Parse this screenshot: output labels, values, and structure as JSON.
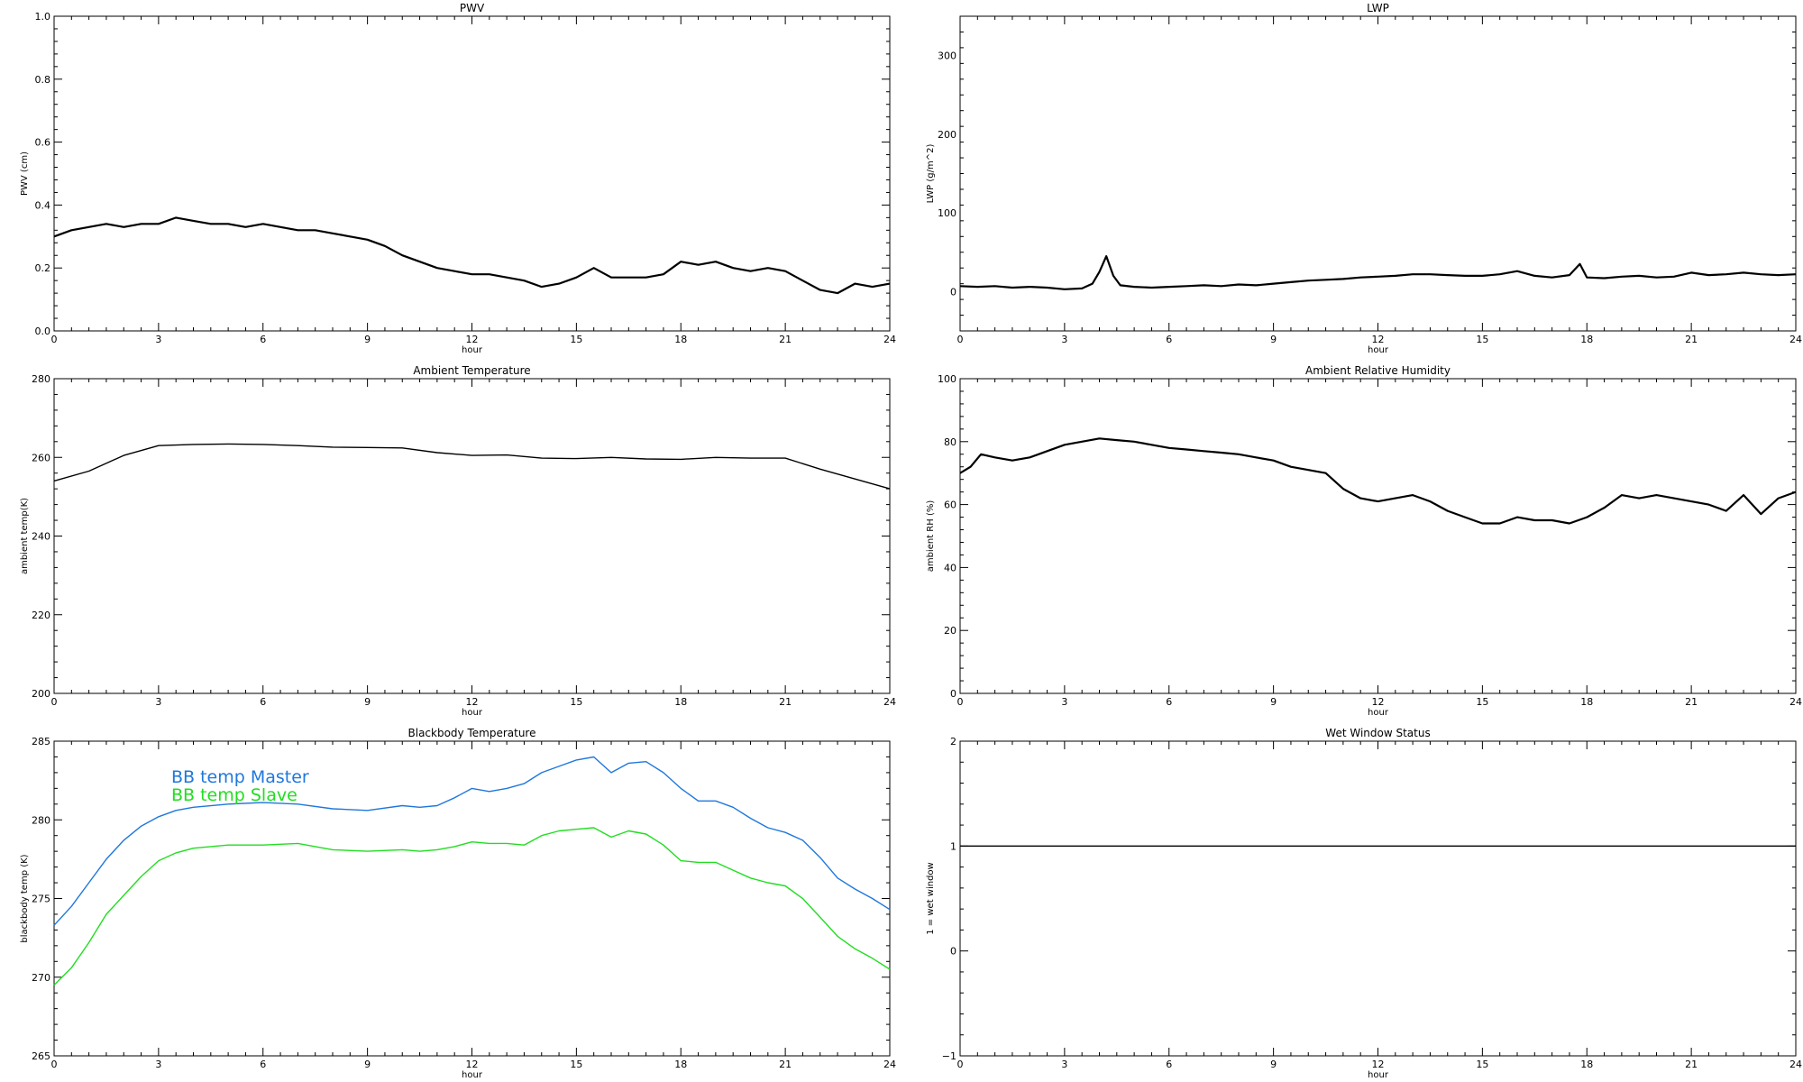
{
  "chart_data": [
    {
      "id": "pwv",
      "type": "line",
      "title": "PWV",
      "xlabel": "hour",
      "ylabel": "PWV (cm)",
      "xlim": [
        0,
        24
      ],
      "ylim": [
        0,
        1.0
      ],
      "xticks": [
        0,
        3,
        6,
        9,
        12,
        15,
        18,
        21,
        24
      ],
      "yticks": [
        0.0,
        0.2,
        0.4,
        0.6,
        0.8,
        1.0
      ],
      "ytick_labels": [
        "0.0",
        "0.2",
        "0.4",
        "0.6",
        "0.8",
        "1.0"
      ],
      "series": [
        {
          "color": "#000000",
          "x": [
            0,
            0.5,
            1,
            1.5,
            2,
            2.5,
            3,
            3.5,
            4,
            4.5,
            5,
            5.5,
            6,
            6.5,
            7,
            7.5,
            8,
            8.5,
            9,
            9.5,
            10,
            10.5,
            11,
            11.5,
            12,
            12.5,
            13,
            13.5,
            14,
            14.5,
            15,
            15.5,
            16,
            16.5,
            17,
            17.5,
            18,
            18.5,
            19,
            19.5,
            20,
            20.5,
            21,
            21.5,
            22,
            22.5,
            23,
            23.5,
            24
          ],
          "y": [
            0.3,
            0.32,
            0.33,
            0.34,
            0.33,
            0.34,
            0.34,
            0.36,
            0.35,
            0.34,
            0.34,
            0.33,
            0.34,
            0.33,
            0.32,
            0.32,
            0.31,
            0.3,
            0.29,
            0.27,
            0.24,
            0.22,
            0.2,
            0.19,
            0.18,
            0.18,
            0.17,
            0.16,
            0.14,
            0.15,
            0.17,
            0.2,
            0.17,
            0.17,
            0.17,
            0.18,
            0.22,
            0.21,
            0.22,
            0.2,
            0.19,
            0.2,
            0.19,
            0.16,
            0.13,
            0.12,
            0.15,
            0.14,
            0.15
          ]
        }
      ]
    },
    {
      "id": "lwp",
      "type": "line",
      "title": "LWP",
      "xlabel": "hour",
      "ylabel": "LWP (g/m^2)",
      "xlim": [
        0,
        24
      ],
      "ylim": [
        -50,
        350
      ],
      "xticks": [
        0,
        3,
        6,
        9,
        12,
        15,
        18,
        21,
        24
      ],
      "yticks": [
        0,
        100,
        200,
        300
      ],
      "ytick_labels": [
        "0",
        "100",
        "200",
        "300"
      ],
      "series": [
        {
          "color": "#000000",
          "x": [
            0,
            0.5,
            1,
            1.5,
            2,
            2.5,
            3,
            3.5,
            3.8,
            4,
            4.2,
            4.4,
            4.6,
            5,
            5.5,
            6,
            6.5,
            7,
            7.5,
            8,
            8.5,
            9,
            9.5,
            10,
            10.5,
            11,
            11.5,
            12,
            12.5,
            13,
            13.5,
            14,
            14.5,
            15,
            15.5,
            16,
            16.5,
            17,
            17.5,
            17.8,
            18,
            18.5,
            19,
            19.5,
            20,
            20.5,
            21,
            21.5,
            22,
            22.5,
            23,
            23.5,
            24
          ],
          "y": [
            7,
            6,
            7,
            5,
            6,
            5,
            3,
            4,
            10,
            25,
            45,
            20,
            8,
            6,
            5,
            6,
            7,
            8,
            7,
            9,
            8,
            10,
            12,
            14,
            15,
            16,
            18,
            19,
            20,
            22,
            22,
            21,
            20,
            20,
            22,
            26,
            20,
            18,
            21,
            35,
            18,
            17,
            19,
            20,
            18,
            19,
            24,
            21,
            22,
            24,
            22,
            21,
            22
          ]
        }
      ]
    },
    {
      "id": "ambient-temp",
      "type": "line",
      "title": "Ambient Temperature",
      "xlabel": "hour",
      "ylabel": "ambient temp(K)",
      "xlim": [
        0,
        24
      ],
      "ylim": [
        200,
        280
      ],
      "xticks": [
        0,
        3,
        6,
        9,
        12,
        15,
        18,
        21,
        24
      ],
      "yticks": [
        200,
        220,
        240,
        260,
        280
      ],
      "ytick_labels": [
        "200",
        "220",
        "240",
        "260",
        "280"
      ],
      "series": [
        {
          "color": "#000000",
          "x": [
            0,
            1,
            2,
            3,
            4,
            5,
            6,
            7,
            8,
            9,
            10,
            11,
            12,
            13,
            14,
            15,
            16,
            17,
            18,
            19,
            20,
            21,
            22,
            23,
            24
          ],
          "y": [
            254,
            256.5,
            260.5,
            263,
            263.3,
            263.4,
            263.3,
            263,
            262.6,
            262.5,
            262.4,
            261.2,
            260.5,
            260.6,
            259.8,
            259.7,
            260.0,
            259.6,
            259.5,
            260.0,
            259.8,
            259.8,
            257,
            254.5,
            252
          ]
        }
      ]
    },
    {
      "id": "ambient-rh",
      "type": "line",
      "title": "Ambient Relative Humidity",
      "xlabel": "hour",
      "ylabel": "ambient RH (%)",
      "xlim": [
        0,
        24
      ],
      "ylim": [
        0,
        100
      ],
      "xticks": [
        0,
        3,
        6,
        9,
        12,
        15,
        18,
        21,
        24
      ],
      "yticks": [
        0,
        20,
        40,
        60,
        80,
        100
      ],
      "ytick_labels": [
        "0",
        "20",
        "40",
        "60",
        "80",
        "100"
      ],
      "series": [
        {
          "color": "#000000",
          "x": [
            0,
            0.3,
            0.6,
            1,
            1.5,
            2,
            2.5,
            3,
            3.5,
            4,
            4.5,
            5,
            5.5,
            6,
            6.5,
            7,
            7.5,
            8,
            8.5,
            9,
            9.5,
            10,
            10.5,
            11,
            11.5,
            12,
            12.5,
            13,
            13.5,
            14,
            14.5,
            15,
            15.5,
            16,
            16.5,
            17,
            17.5,
            18,
            18.5,
            19,
            19.5,
            20,
            20.5,
            21,
            21.5,
            22,
            22.5,
            23,
            23.5,
            24
          ],
          "y": [
            70,
            72,
            76,
            75,
            74,
            75,
            77,
            79,
            80,
            81,
            80.5,
            80,
            79,
            78,
            77.5,
            77,
            76.5,
            76,
            75,
            74,
            72,
            71,
            70,
            65,
            62,
            61,
            62,
            63,
            61,
            58,
            56,
            54,
            54,
            56,
            55,
            55,
            54,
            56,
            59,
            63,
            62,
            63,
            62,
            61,
            60,
            58,
            63,
            57,
            62,
            64
          ]
        }
      ]
    },
    {
      "id": "bb-temp",
      "type": "line",
      "title": "Blackbody Temperature",
      "xlabel": "hour",
      "ylabel": "blackbody temp (K)",
      "xlim": [
        0,
        24
      ],
      "ylim": [
        265,
        285
      ],
      "xticks": [
        0,
        3,
        6,
        9,
        12,
        15,
        18,
        21,
        24
      ],
      "yticks": [
        265,
        270,
        275,
        280,
        285
      ],
      "ytick_labels": [
        "265",
        "270",
        "275",
        "280",
        "285"
      ],
      "legend": [
        {
          "label": "BB temp Master",
          "color": "#1f77dd"
        },
        {
          "label": "BB temp Slave",
          "color": "#22dd22"
        }
      ],
      "series": [
        {
          "name": "BB temp Master",
          "color": "#1f77dd",
          "x": [
            0,
            0.5,
            1,
            1.5,
            2,
            2.5,
            3,
            3.5,
            4,
            5,
            6,
            7,
            8,
            9,
            10,
            10.5,
            11,
            11.5,
            12,
            12.5,
            13,
            13.5,
            14,
            14.5,
            15,
            15.5,
            16,
            16.5,
            17,
            17.5,
            18,
            18.5,
            19,
            19.5,
            20,
            20.5,
            21,
            21.5,
            22,
            22.5,
            23,
            23.5,
            24
          ],
          "y": [
            273.3,
            274.5,
            276,
            277.5,
            278.7,
            279.6,
            280.2,
            280.6,
            280.8,
            281.0,
            281.1,
            281.0,
            280.7,
            280.6,
            280.9,
            280.8,
            280.9,
            281.4,
            282.0,
            281.8,
            282.0,
            282.3,
            283.0,
            283.4,
            283.8,
            284.0,
            283.0,
            283.6,
            283.7,
            283.0,
            282.0,
            281.2,
            281.2,
            280.8,
            280.1,
            279.5,
            279.2,
            278.7,
            277.6,
            276.3,
            275.6,
            275.0,
            274.3
          ]
        },
        {
          "name": "BB temp Slave",
          "color": "#22dd22",
          "x": [
            0,
            0.5,
            1,
            1.5,
            2,
            2.5,
            3,
            3.5,
            4,
            5,
            6,
            7,
            8,
            9,
            10,
            10.5,
            11,
            11.5,
            12,
            12.5,
            13,
            13.5,
            14,
            14.5,
            15,
            15.5,
            16,
            16.5,
            17,
            17.5,
            18,
            18.5,
            19,
            19.5,
            20,
            20.5,
            21,
            21.5,
            22,
            22.5,
            23,
            23.5,
            24
          ],
          "y": [
            269.5,
            270.6,
            272.2,
            274.0,
            275.2,
            276.4,
            277.4,
            277.9,
            278.2,
            278.4,
            278.4,
            278.5,
            278.1,
            278.0,
            278.1,
            278.0,
            278.1,
            278.3,
            278.6,
            278.5,
            278.5,
            278.4,
            279.0,
            279.3,
            279.4,
            279.5,
            278.9,
            279.3,
            279.1,
            278.4,
            277.4,
            277.3,
            277.3,
            276.8,
            276.3,
            276.0,
            275.8,
            275.0,
            273.8,
            272.6,
            271.8,
            271.2,
            270.5
          ]
        }
      ]
    },
    {
      "id": "wet-window",
      "type": "line",
      "title": "Wet Window Status",
      "xlabel": "hour",
      "ylabel": "1 = wet window",
      "xlim": [
        0,
        24
      ],
      "ylim": [
        -1,
        2
      ],
      "xticks": [
        0,
        3,
        6,
        9,
        12,
        15,
        18,
        21,
        24
      ],
      "yticks": [
        -1,
        0,
        1,
        2
      ],
      "ytick_labels": [
        "−1",
        "0",
        "1",
        "2"
      ],
      "series": [
        {
          "color": "#000000",
          "x": [
            0,
            24
          ],
          "y": [
            1,
            1
          ]
        }
      ]
    }
  ]
}
